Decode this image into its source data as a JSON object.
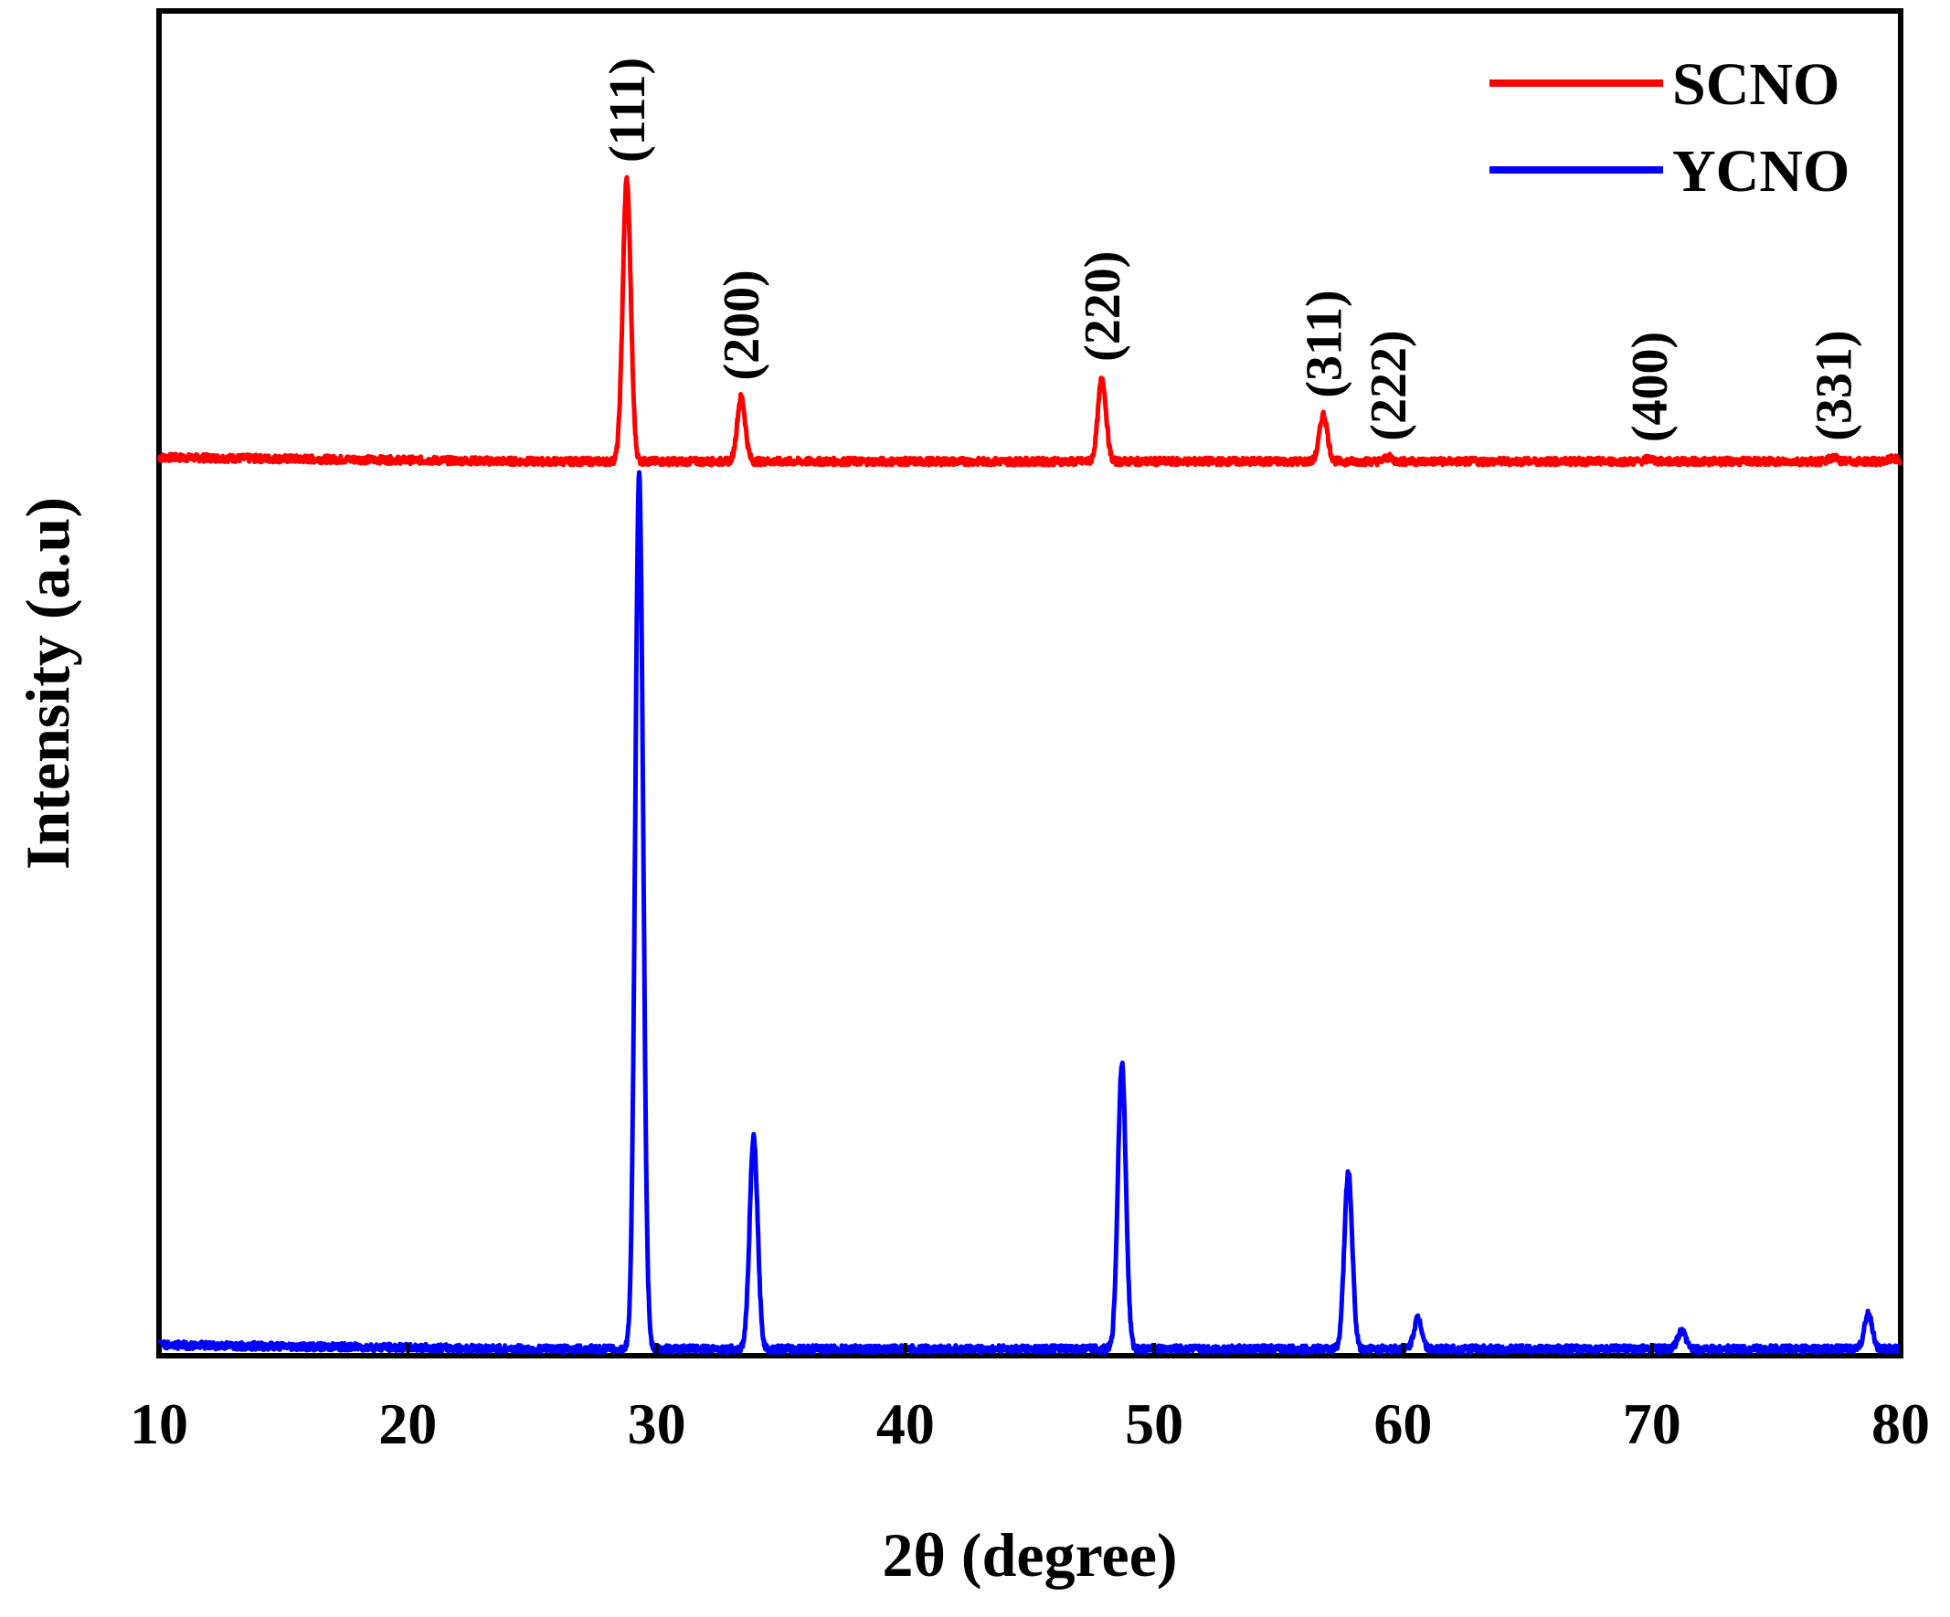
{
  "chart_data": {
    "type": "line",
    "xlabel": "2θ (degree)",
    "ylabel": "Intensity (a.u)",
    "xlim": [
      10,
      80
    ],
    "ylim": [
      0,
      100
    ],
    "xticks": [
      10,
      20,
      30,
      40,
      50,
      60,
      70,
      80
    ],
    "grid": false,
    "legend_position": "top-right",
    "series": [
      {
        "name": "SCNO",
        "color": "#ff0000",
        "baseline": 66.5,
        "peaks": [
          {
            "x": 28.8,
            "y": 87.5
          },
          {
            "x": 33.4,
            "y": 71.3
          },
          {
            "x": 47.9,
            "y": 72.7
          },
          {
            "x": 56.8,
            "y": 70.0
          },
          {
            "x": 59.4,
            "y": 66.8
          },
          {
            "x": 69.9,
            "y": 66.7
          },
          {
            "x": 77.3,
            "y": 66.8
          },
          {
            "x": 79.7,
            "y": 66.7
          }
        ]
      },
      {
        "name": "YCNO",
        "color": "#0000ff",
        "baseline": 0.5,
        "peaks": [
          {
            "x": 29.3,
            "y": 65.5
          },
          {
            "x": 33.9,
            "y": 16.2
          },
          {
            "x": 48.7,
            "y": 21.8
          },
          {
            "x": 57.8,
            "y": 13.6
          },
          {
            "x": 60.6,
            "y": 2.8
          },
          {
            "x": 71.2,
            "y": 1.8
          },
          {
            "x": 78.7,
            "y": 3.1
          }
        ]
      }
    ],
    "annotations": [
      {
        "text": "(111)",
        "x": 28.8
      },
      {
        "text": "(200)",
        "x": 33.4
      },
      {
        "text": "(220)",
        "x": 47.9
      },
      {
        "text": "(311)",
        "x": 56.8
      },
      {
        "text": "(222)",
        "x": 59.4
      },
      {
        "text": "(400)",
        "x": 69.9
      },
      {
        "text": "(331)",
        "x": 77.3
      }
    ]
  }
}
